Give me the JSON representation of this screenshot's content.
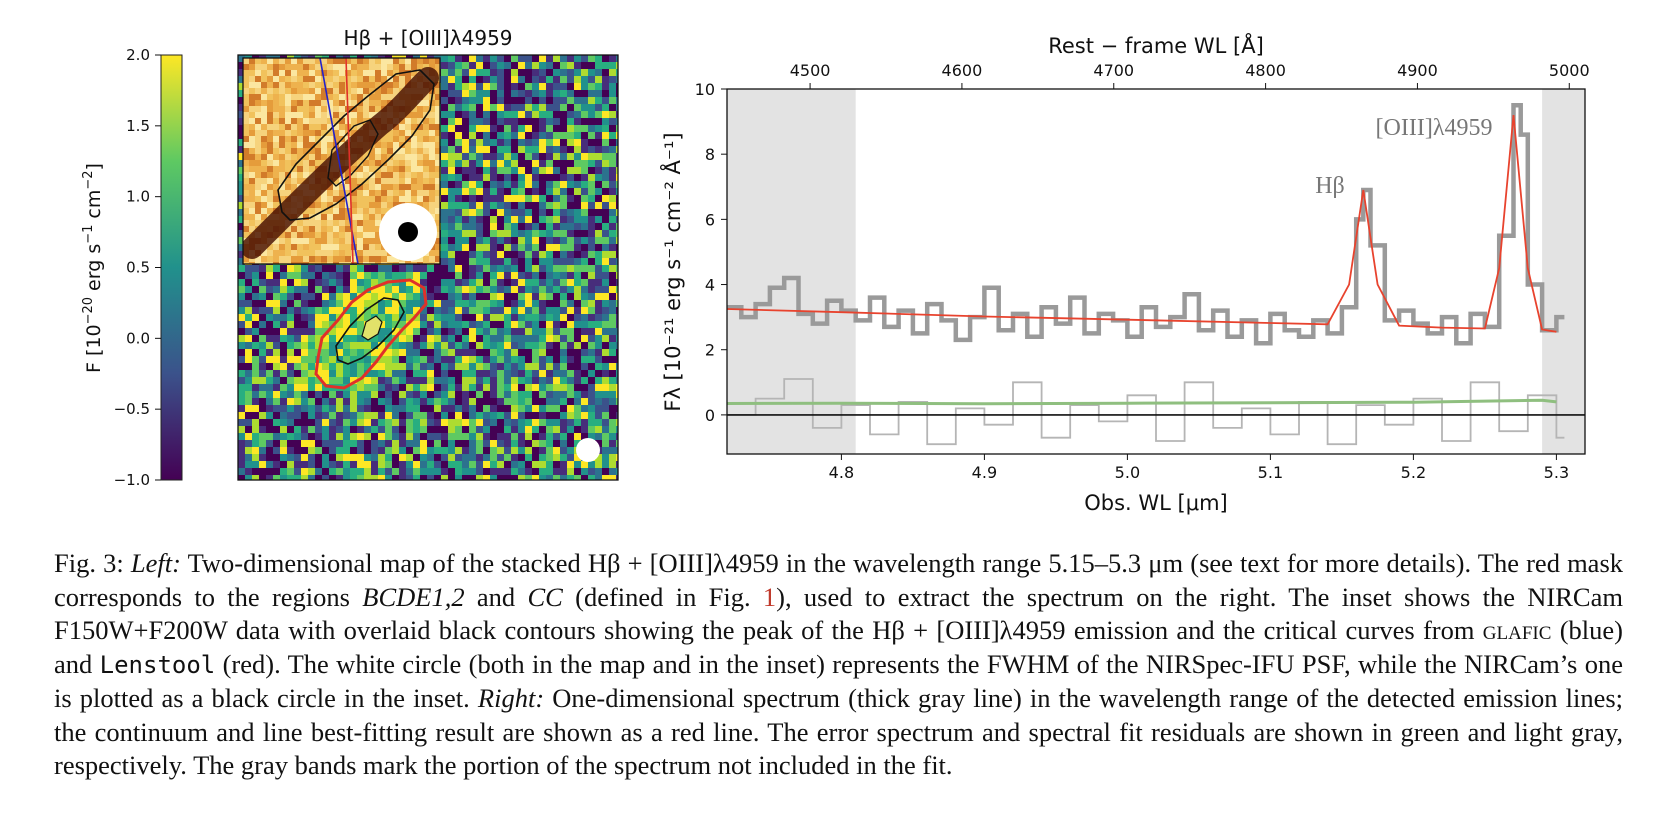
{
  "figure": {
    "colorbar": {
      "label_prefix": "F [10",
      "label_exp1": "−20",
      "label_mid": " erg s",
      "label_exp2": "−1",
      "label_mid2": " cm",
      "label_exp3": "−2",
      "label_suffix": "]",
      "ticks": [
        "2.0",
        "1.5",
        "1.0",
        "0.5",
        "0.0",
        "−0.5",
        "−1.0"
      ],
      "range": [
        -1.0,
        2.0
      ]
    },
    "map": {
      "title": "Hβ + [OIII]λ4959",
      "colormap": "viridis",
      "mask_color": "#e0302a",
      "inset_colormap": "afmhot",
      "critical_curves": [
        {
          "code": "GLAFIC",
          "color": "#2222cc"
        },
        {
          "code": "Lenstool",
          "color": "#e0302a"
        }
      ]
    },
    "spectrum": {
      "top_label": "Rest − frame WL [Å]",
      "top_ticks": [
        "4500",
        "4600",
        "4700",
        "4800",
        "4900",
        "5000"
      ],
      "bottom_label": "Obs. WL [μm]",
      "bottom_ticks": [
        "4.8",
        "4.9",
        "5.0",
        "5.1",
        "5.2",
        "5.3"
      ],
      "y_label": "Fλ [10⁻²¹ erg s⁻¹ cm⁻² Å⁻¹]",
      "y_ticks": [
        "10",
        "8",
        "6",
        "4",
        "2",
        "0"
      ],
      "line_labels": {
        "hbeta": "Hβ",
        "oiii": "[OIII]λ4959"
      },
      "colors": {
        "data": "#9a9a9a",
        "fit": "#e8432e",
        "error": "#8fbf7f",
        "residual": "#b5b5b5",
        "band": "#e3e3e3"
      }
    }
  },
  "chart_data": {
    "type": "line",
    "title": "",
    "xlabel": "Obs. WL [μm]",
    "x2label": "Rest − frame WL [Å]",
    "ylabel": "Fλ [10⁻²¹ erg s⁻¹ cm⁻² Å⁻¹]",
    "xlim": [
      4.72,
      5.32
    ],
    "ylim": [
      -1.2,
      10
    ],
    "masked_bands": [
      [
        4.72,
        4.81
      ],
      [
        5.29,
        5.32
      ]
    ],
    "series": [
      {
        "name": "",
        "style": "thick gray steps",
        "x": [
          4.72,
          4.73,
          4.74,
          4.75,
          4.76,
          4.77,
          4.78,
          4.79,
          4.8,
          4.81,
          4.82,
          4.83,
          4.84,
          4.85,
          4.86,
          4.87,
          4.88,
          4.89,
          4.9,
          4.91,
          4.92,
          4.93,
          4.94,
          4.95,
          4.96,
          4.97,
          4.98,
          4.99,
          5.0,
          5.01,
          5.02,
          5.03,
          5.04,
          5.05,
          5.06,
          5.07,
          5.08,
          5.09,
          5.1,
          5.11,
          5.12,
          5.13,
          5.14,
          5.15,
          5.16,
          5.165,
          5.17,
          5.18,
          5.19,
          5.2,
          5.21,
          5.22,
          5.23,
          5.24,
          5.25,
          5.26,
          5.27,
          5.275,
          5.28,
          5.29,
          5.3
        ],
        "y": [
          3.3,
          3.0,
          3.4,
          3.9,
          4.2,
          3.1,
          2.8,
          3.5,
          3.2,
          2.9,
          3.6,
          2.7,
          3.2,
          2.5,
          3.4,
          2.9,
          2.3,
          3.0,
          3.9,
          2.6,
          3.1,
          2.4,
          3.3,
          2.8,
          3.6,
          2.5,
          3.1,
          2.9,
          2.4,
          3.3,
          2.7,
          3.0,
          3.7,
          2.6,
          3.2,
          2.4,
          2.9,
          2.2,
          3.1,
          2.6,
          2.4,
          2.9,
          2.5,
          3.3,
          6.0,
          6.9,
          5.2,
          2.9,
          3.2,
          2.8,
          2.5,
          3.0,
          2.2,
          3.1,
          2.7,
          5.5,
          9.5,
          8.6,
          4.0,
          2.6,
          3.0
        ]
      },
      {
        "name": "",
        "style": "red fit",
        "x": [
          4.72,
          4.8,
          4.9,
          5.0,
          5.1,
          5.14,
          5.155,
          5.165,
          5.175,
          5.19,
          5.22,
          5.25,
          5.26,
          5.27,
          5.28,
          5.29,
          5.3
        ],
        "y": [
          3.25,
          3.15,
          3.02,
          2.92,
          2.82,
          2.78,
          4.0,
          6.9,
          4.0,
          2.74,
          2.68,
          2.65,
          4.5,
          9.2,
          4.5,
          2.62,
          2.55
        ]
      },
      {
        "name": "",
        "style": "green error",
        "x": [
          4.72,
          4.8,
          4.9,
          5.0,
          5.1,
          5.2,
          5.29,
          5.3
        ],
        "y": [
          0.35,
          0.36,
          0.34,
          0.36,
          0.37,
          0.39,
          0.45,
          0.4
        ]
      },
      {
        "name": "",
        "style": "light gray residual steps",
        "x": [
          4.72,
          4.74,
          4.76,
          4.78,
          4.8,
          4.82,
          4.84,
          4.86,
          4.88,
          4.9,
          4.92,
          4.94,
          4.96,
          4.98,
          5.0,
          5.02,
          5.04,
          5.06,
          5.08,
          5.1,
          5.12,
          5.14,
          5.16,
          5.18,
          5.2,
          5.22,
          5.24,
          5.26,
          5.28,
          5.3
        ],
        "y": [
          0.0,
          0.5,
          1.1,
          -0.4,
          0.3,
          -0.6,
          0.4,
          -0.9,
          0.2,
          -0.3,
          1.0,
          -0.7,
          0.3,
          -0.2,
          0.6,
          -0.8,
          1.0,
          -0.4,
          0.2,
          -0.6,
          0.4,
          -0.9,
          0.3,
          -0.3,
          0.5,
          -0.8,
          1.0,
          -0.5,
          0.6,
          -0.7
        ]
      }
    ],
    "annotations": [
      "Hβ",
      "[OIII]λ4959"
    ]
  },
  "caption": {
    "p1": "Fig. 3: ",
    "p2": "Left:",
    "p3": " Two-dimensional map of the stacked Hβ + [O",
    "p3sc": "III",
    "p4": "]λ4959 in the wavelength range 5.15–5.3 μm (see text for more details). The red mask corresponds to the regions ",
    "p5": "BCDE1,2",
    "p6": " and ",
    "p7": "CC",
    "p8": " (defined in Fig. ",
    "p9": "1",
    "p10": "), used to extract the spectrum on the right. The inset shows the NIRCam F150W+F200W data with overlaid black contours showing the peak of the Hβ + [O",
    "p10sc": "III",
    "p11": "]λ4959 emission and the critical curves from ",
    "p12": "glafic",
    "p13": " (blue) and ",
    "p14": "Lenstool",
    "p15": " (red). The white circle (both in the map and in the inset) represents the FWHM of the NIRSpec-IFU PSF, while the NIRCam’s one is plotted as a black circle in the inset. ",
    "p16": "Right:",
    "p17": " One-dimensional spectrum (thick gray line) in the wavelength range of the detected emission lines; the continuum and line best-fitting result are shown as a red line. The error spectrum and spectral fit residuals are shown in green and light gray, respectively. The gray bands mark the portion of the spectrum not included in the fit."
  }
}
